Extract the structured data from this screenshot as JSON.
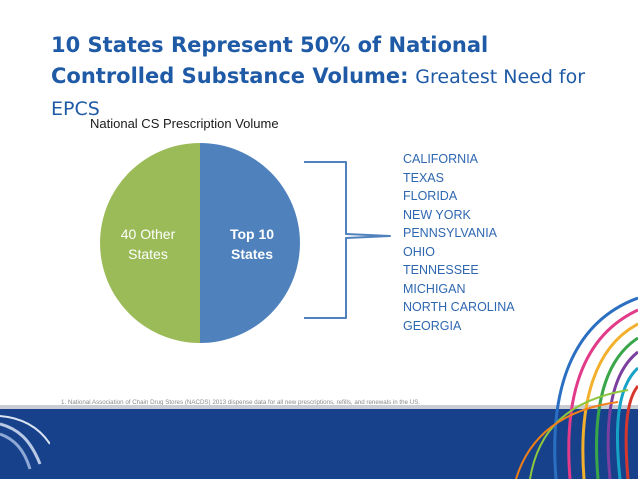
{
  "title": {
    "bold_line": "10 States Represent 50% of National Controlled Substance Volume:",
    "light_part": "Greatest Need for EPCS"
  },
  "chart_data": {
    "type": "pie",
    "title": "National CS Prescription Volume",
    "slices": [
      {
        "label": "Top 10 States",
        "label_lines": [
          "Top 10",
          "States"
        ],
        "value": 50,
        "color": "#4f81bd",
        "text_color": "#ffffff",
        "bold": true
      },
      {
        "label": "40 Other States",
        "label_lines": [
          "40 Other",
          "States"
        ],
        "value": 50,
        "color": "#9bbb59",
        "text_color": "#ffffff",
        "bold": false
      }
    ]
  },
  "states": [
    "CALIFORNIA",
    "TEXAS",
    "FLORIDA",
    "NEW YORK",
    "PENNSYLVANIA",
    "OHIO",
    "TENNESSEE",
    "MICHIGAN",
    "NORTH CAROLINA",
    "GEORGIA"
  ],
  "footnote": "1. National Association of Chain Drug Stores (NACDS) 2013 dispense data for all new prescriptions, refills, and renewals in the US.",
  "colors": {
    "title": "#1f5aa6",
    "list_text": "#2e67b0",
    "bracket": "#4f81bd",
    "footer": "#17428b"
  }
}
